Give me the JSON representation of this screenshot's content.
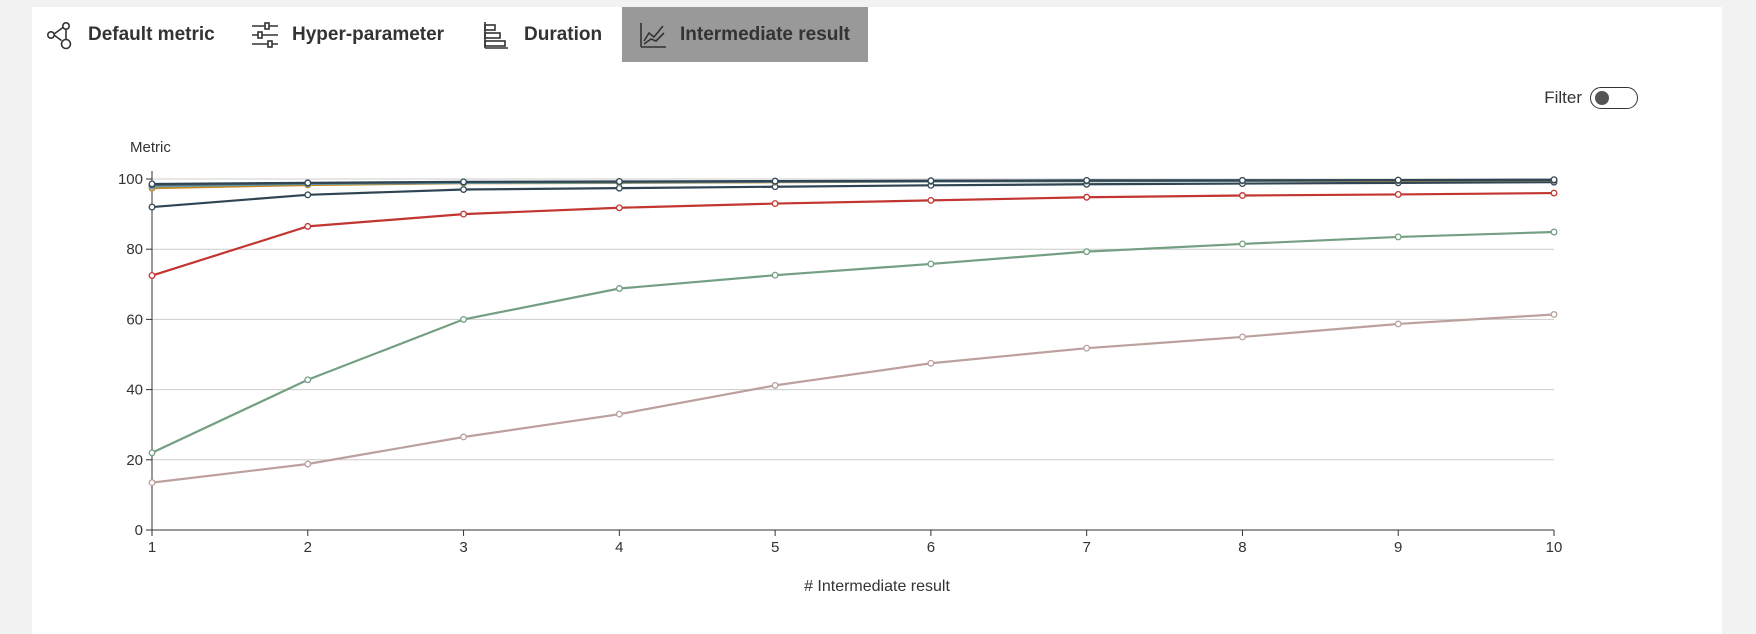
{
  "tabs": [
    {
      "label": "Default metric",
      "icon": "graph-nodes-icon",
      "active": false
    },
    {
      "label": "Hyper-parameter",
      "icon": "sliders-icon",
      "active": false
    },
    {
      "label": "Duration",
      "icon": "bar-chart-icon",
      "active": false
    },
    {
      "label": "Intermediate result",
      "icon": "line-chart-icon",
      "active": true
    }
  ],
  "filter": {
    "label": "Filter",
    "enabled": false
  },
  "chart_data": {
    "type": "line",
    "xlabel": "# Intermediate result",
    "ylabel": "Metric",
    "x": [
      1,
      2,
      3,
      4,
      5,
      6,
      7,
      8,
      9,
      10
    ],
    "xlim": [
      1,
      10
    ],
    "ylim": [
      0,
      100
    ],
    "yticks": [
      0,
      20,
      40,
      60,
      80,
      100
    ],
    "grid": true,
    "series": [
      {
        "color": "#bca09e",
        "values": [
          13.5,
          18.8,
          26.5,
          33,
          41.2,
          47.5,
          51.8,
          55,
          58.7,
          61.4
        ]
      },
      {
        "color": "#749f83",
        "values": [
          22,
          42.8,
          60,
          68.8,
          72.6,
          75.8,
          79.3,
          81.5,
          83.5,
          84.9
        ]
      },
      {
        "color": "#c23531",
        "values": [
          72.5,
          86.5,
          90,
          91.8,
          93,
          93.9,
          94.8,
          95.3,
          95.6,
          96
        ]
      },
      {
        "color": "#2f4554",
        "values": [
          92,
          95.5,
          97,
          97.4,
          97.8,
          98.2,
          98.5,
          98.7,
          98.9,
          99.1
        ]
      },
      {
        "color": "#ca8622",
        "values": [
          97.4,
          98.3,
          98.8,
          98.9,
          99.1,
          99.3,
          99.4,
          99.5,
          99.5,
          99.6
        ]
      },
      {
        "color": "#61a0a8",
        "values": [
          97.9,
          98.6,
          98.9,
          99,
          99.2,
          99.3,
          99.4,
          99.5,
          99.6,
          99.7
        ]
      },
      {
        "color": "#546570",
        "values": [
          98.3,
          98.8,
          99.1,
          99.2,
          99.3,
          99.4,
          99.5,
          99.6,
          99.6,
          99.7
        ]
      },
      {
        "color": "#2f4554",
        "values": [
          98.6,
          98.9,
          99.2,
          99.3,
          99.4,
          99.5,
          99.6,
          99.6,
          99.7,
          99.8
        ]
      }
    ]
  }
}
